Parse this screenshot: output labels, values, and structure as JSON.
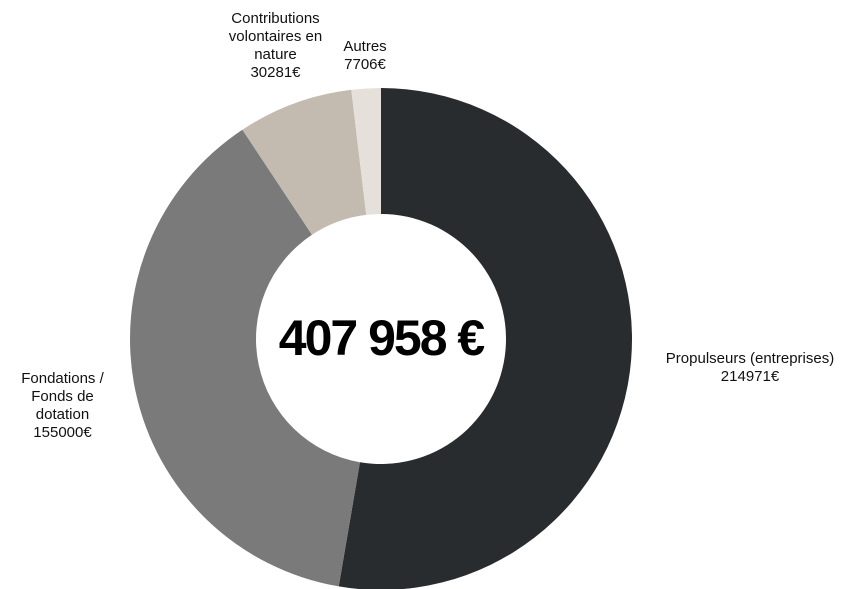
{
  "chart_data": {
    "type": "donut",
    "categories": [
      "Propulseurs (entreprises)",
      "Fondations / Fonds de dotation",
      "Contributions volontaires en nature",
      "Autres"
    ],
    "values": [
      214971,
      155000,
      30281,
      7706
    ],
    "value_labels": [
      "214971€",
      "155000€",
      "30281€",
      "7706€"
    ],
    "colors": [
      "#292c2e",
      "#7a7a7a",
      "#c4bbb0",
      "#e6e0da"
    ],
    "center_label": "407 958 €"
  }
}
